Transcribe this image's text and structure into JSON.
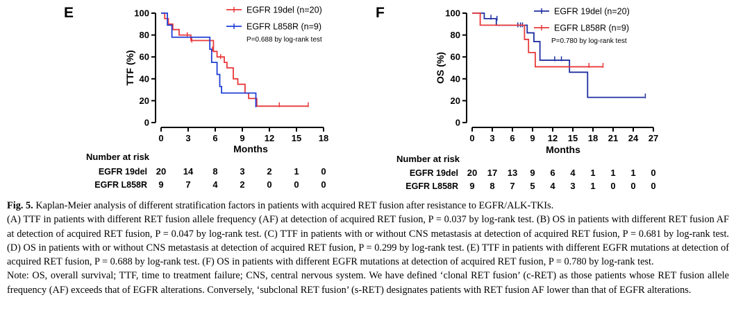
{
  "chart_data": [
    {
      "panel": "E",
      "type": "line",
      "subtype": "kaplan-meier",
      "ylabel": "TTF (%)",
      "xlabel": "Months",
      "xlim": [
        0,
        18
      ],
      "ylim": [
        0,
        100
      ],
      "x_ticks": [
        "0",
        "3",
        "6",
        "9",
        "12",
        "15",
        "18"
      ],
      "y_ticks": [
        "0",
        "20",
        "40",
        "60",
        "80",
        "100"
      ],
      "pvalue_text": "P=0.688 by log-rank test",
      "series": [
        {
          "name": "EGFR 19del (n=20)",
          "color": "#e8383a",
          "steps": [
            [
              0,
              100
            ],
            [
              0.4,
              95
            ],
            [
              0.8,
              90
            ],
            [
              1.3,
              85
            ],
            [
              2.0,
              80
            ],
            [
              3.3,
              75
            ],
            [
              5.0,
              75
            ],
            [
              5.8,
              65
            ],
            [
              6.2,
              60
            ],
            [
              7.0,
              55
            ],
            [
              7.3,
              50
            ],
            [
              8.0,
              40
            ],
            [
              8.5,
              35
            ],
            [
              9.3,
              27
            ],
            [
              9.7,
              22
            ],
            [
              10.6,
              15
            ],
            [
              16.3,
              15
            ]
          ],
          "censors": [
            [
              2.9,
              80
            ],
            [
              3.4,
              75
            ],
            [
              5.7,
              67
            ],
            [
              6.6,
              60
            ],
            [
              13.1,
              16
            ],
            [
              16.3,
              16
            ]
          ]
        },
        {
          "name": "EGFR L858R (n=9)",
          "color": "#1f3ed6",
          "steps": [
            [
              0,
              100
            ],
            [
              0.7,
              89
            ],
            [
              1.2,
              78
            ],
            [
              5.4,
              67
            ],
            [
              5.6,
              55
            ],
            [
              6.2,
              44
            ],
            [
              6.5,
              33
            ],
            [
              6.7,
              27
            ],
            [
              10.5,
              14
            ],
            [
              10.5,
              14
            ]
          ],
          "censors": []
        }
      ],
      "risk_table": {
        "title": "Number at risk",
        "rows": [
          {
            "label": "EGFR 19del",
            "values": [
              "20",
              "14",
              "8",
              "3",
              "2",
              "1",
              "0"
            ]
          },
          {
            "label": "EGFR L858R",
            "values": [
              "9",
              "7",
              "4",
              "2",
              "0",
              "0",
              "0"
            ]
          }
        ]
      }
    },
    {
      "panel": "F",
      "type": "line",
      "subtype": "kaplan-meier",
      "ylabel": "OS (%)",
      "xlabel": "Months",
      "xlim": [
        0,
        27
      ],
      "ylim": [
        0,
        100
      ],
      "x_ticks": [
        "0",
        "3",
        "6",
        "9",
        "12",
        "15",
        "18",
        "21",
        "24",
        "27"
      ],
      "y_ticks": [
        "0",
        "20",
        "40",
        "60",
        "80",
        "100"
      ],
      "pvalue_text": "P=0.780 by log-rank test",
      "series": [
        {
          "name": "EGFR 19del (n=20)",
          "color": "#1f2fa0",
          "steps": [
            [
              0,
              100
            ],
            [
              1.8,
              95
            ],
            [
              3.6,
              89
            ],
            [
              8.2,
              82
            ],
            [
              9.2,
              74
            ],
            [
              10.1,
              57
            ],
            [
              14.5,
              46
            ],
            [
              17.2,
              23
            ],
            [
              25.7,
              23
            ]
          ],
          "censors": [
            [
              2.8,
              96
            ],
            [
              3.7,
              95
            ],
            [
              6.8,
              89
            ],
            [
              7.2,
              89
            ],
            [
              7.5,
              89
            ],
            [
              12.3,
              58
            ],
            [
              13.3,
              58
            ],
            [
              25.8,
              24
            ]
          ]
        },
        {
          "name": "EGFR L858R (n=9)",
          "color": "#e8383a",
          "steps": [
            [
              0,
              100
            ],
            [
              1.2,
              89
            ],
            [
              7.8,
              76
            ],
            [
              8.4,
              64
            ],
            [
              9.4,
              51
            ],
            [
              19.5,
              51
            ]
          ],
          "censors": [
            [
              17.4,
              52
            ],
            [
              19.5,
              52
            ]
          ]
        }
      ],
      "risk_table": {
        "title": "Number at risk",
        "rows": [
          {
            "label": "EGFR 19del",
            "values": [
              "20",
              "17",
              "13",
              "9",
              "6",
              "4",
              "1",
              "1",
              "1",
              "0"
            ]
          },
          {
            "label": "EGFR L858R",
            "values": [
              "9",
              "8",
              "7",
              "5",
              "4",
              "3",
              "1",
              "0",
              "0",
              "0"
            ]
          }
        ]
      }
    }
  ],
  "caption": {
    "fig_label": "Fig. 5.",
    "title": "Kaplan-Meier analysis of different stratification factors in patients with acquired RET fusion after resistance to EGFR/ALK-TKIs.",
    "body": "(A) TTF in patients with different RET fusion allele frequency (AF) at detection of acquired RET fusion, P = 0.037 by log-rank test. (B) OS in patients with different RET fusion AF at detection of acquired RET fusion, P = 0.047 by log-rank test. (C) TTF in patients with or without CNS metastasis at detection of acquired RET fusion, P = 0.681 by log-rank test. (D) OS in patients with or without CNS metastasis at detection of acquired RET fusion, P = 0.299 by log-rank test. (E) TTF in patients with different EGFR mutations at detection of acquired RET fusion, P = 0.688 by log-rank test. (F) OS in patients with different EGFR mutations at detection of acquired RET fusion, P = 0.780 by log-rank test.",
    "note": "Note: OS, overall survival; TTF, time to treatment failure; CNS, central nervous system. We have defined ‘clonal RET fusion’ (c-RET) as those patients whose RET fusion allele frequency (AF) exceeds that of EGFR alterations. Conversely, ‘subclonal RET fusion’ (s-RET) designates patients with RET fusion AF lower than that of EGFR alterations."
  }
}
